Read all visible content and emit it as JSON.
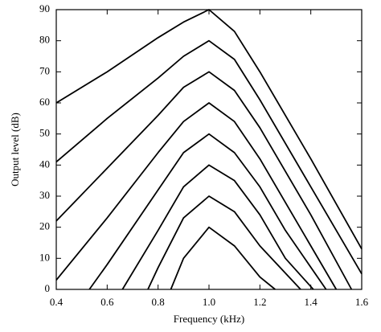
{
  "chart_data": {
    "type": "line",
    "xlabel": "Frequency (kHz)",
    "ylabel": "Output level (dB)",
    "xlim": [
      0.4,
      1.6
    ],
    "ylim": [
      0,
      90
    ],
    "xticks": [
      0.4,
      0.6,
      0.8,
      {
        "value": 1,
        "label": "1.0"
      },
      1.2,
      1.4,
      1.6
    ],
    "yticks": [
      0,
      10,
      20,
      30,
      40,
      50,
      60,
      70,
      80,
      90
    ],
    "series": [
      {
        "color": "#000000",
        "x": [
          0.4,
          0.6,
          0.8,
          0.9,
          1.0,
          1.1,
          1.2,
          1.4,
          1.6
        ],
        "values": [
          60,
          70,
          81,
          86,
          90,
          83,
          70,
          42,
          13
        ]
      },
      {
        "color": "#000000",
        "x": [
          0.4,
          0.6,
          0.8,
          0.9,
          1.0,
          1.1,
          1.2,
          1.4,
          1.6
        ],
        "values": [
          41,
          55,
          68,
          75,
          80,
          74,
          61,
          33,
          5
        ]
      },
      {
        "color": "#000000",
        "x": [
          0.4,
          0.6,
          0.8,
          0.9,
          1.0,
          1.1,
          1.2,
          1.4,
          1.56
        ],
        "values": [
          22,
          39,
          56,
          65,
          70,
          64,
          52,
          24,
          0
        ]
      },
      {
        "color": "#000000",
        "x": [
          0.4,
          0.6,
          0.8,
          0.9,
          1.0,
          1.1,
          1.2,
          1.4,
          1.5
        ],
        "values": [
          3,
          23,
          44,
          54,
          60,
          54,
          42,
          14,
          0
        ]
      },
      {
        "color": "#000000",
        "x": [
          0.53,
          0.6,
          0.8,
          0.9,
          1.0,
          1.1,
          1.2,
          1.3,
          1.46
        ],
        "values": [
          0,
          8,
          32,
          44,
          50,
          44,
          33,
          19,
          0
        ]
      },
      {
        "color": "#000000",
        "x": [
          0.66,
          0.8,
          0.9,
          1.0,
          1.1,
          1.2,
          1.3,
          1.41
        ],
        "values": [
          0,
          19,
          33,
          40,
          35,
          24,
          10,
          0
        ]
      },
      {
        "color": "#000000",
        "x": [
          0.76,
          0.8,
          0.9,
          1.0,
          1.1,
          1.2,
          1.36
        ],
        "values": [
          0,
          7,
          23,
          30,
          25,
          14,
          0
        ]
      },
      {
        "color": "#000000",
        "x": [
          0.85,
          0.9,
          1.0,
          1.1,
          1.2,
          1.26
        ],
        "values": [
          0,
          10,
          20,
          14,
          4,
          0
        ]
      }
    ]
  }
}
